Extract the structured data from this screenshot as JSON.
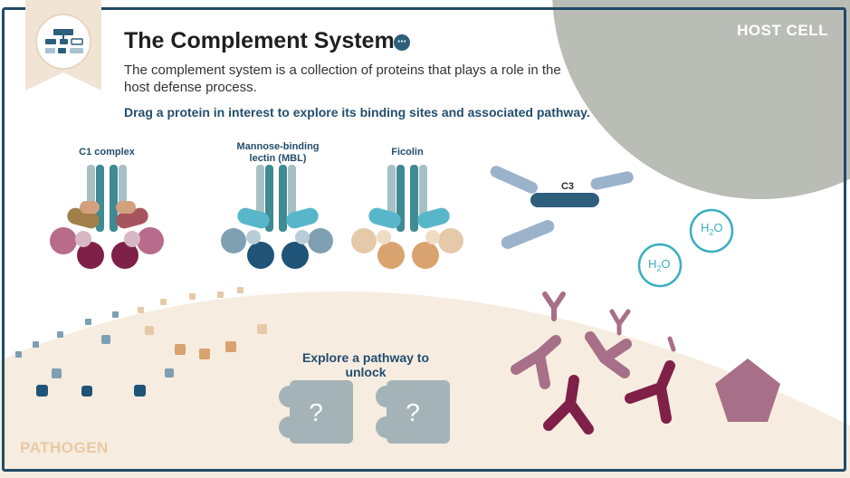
{
  "header": {
    "title": "The Complement System",
    "description": "The complement system is a collection of proteins that plays a role in the host defense process.",
    "instruction": "Drag a protein in interest to explore its binding sites and associated pathway."
  },
  "regions": {
    "host": "HOST CELL",
    "pathogen": "PATHOGEN"
  },
  "proteins": [
    {
      "label": "C1 complex"
    },
    {
      "label": "Mannose-binding lectin (MBL)"
    },
    {
      "label": "Ficolin"
    }
  ],
  "c3": {
    "label": "C3"
  },
  "water": {
    "label": "H",
    "sub": "2",
    "tail": "O"
  },
  "pathway": {
    "prompt": "Explore a pathway to unlock",
    "locked_symbol": "?"
  },
  "colors": {
    "frame": "#1f4a66",
    "navy": "#234e6e",
    "host": "#b9bdb6",
    "pathogen": "#f6ece0",
    "teal": "#3aaec0",
    "mauve": "#a86f88",
    "plum": "#7f2048",
    "slate_blue": "#9bb2cb",
    "puzzle": "#a4b3b7"
  }
}
